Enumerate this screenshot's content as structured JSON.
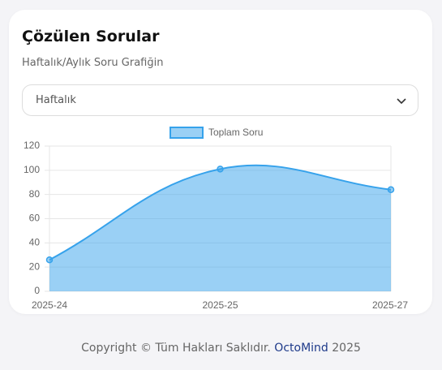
{
  "card": {
    "title": "Çözülen Sorular",
    "subtitle": "Haftalık/Aylık Soru Grafiğin",
    "select": {
      "value": "Haftalık"
    }
  },
  "chart_data": {
    "type": "line",
    "categories": [
      "2025-24",
      "2025-25",
      "2025-27"
    ],
    "series": [
      {
        "name": "Toplam Soru",
        "color": "#36a2eb",
        "values": [
          26,
          101,
          84
        ]
      }
    ],
    "ylim": [
      0,
      120
    ],
    "yticks": [
      0,
      20,
      40,
      60,
      80,
      100,
      120
    ],
    "grid": true,
    "fill": true,
    "smooth": true,
    "legend": "top"
  },
  "footer": {
    "text": "Copyright © Tüm Hakları Saklıdır.",
    "brand": "OctoMind",
    "year": "2025"
  }
}
